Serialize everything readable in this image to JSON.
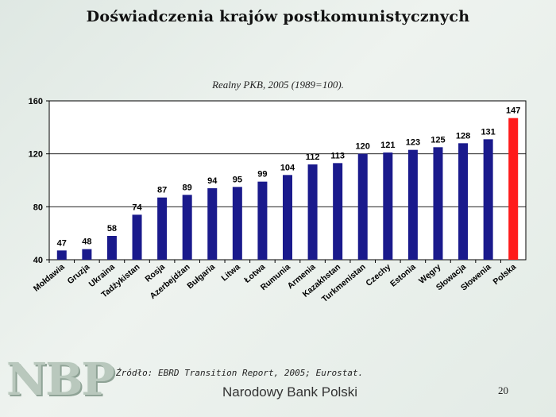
{
  "slide": {
    "title": "Doświadczenia krajów postkomunistycznych",
    "source": "Źródło: EBRD Transition Report, 2005; Eurostat.",
    "logo_text": "NBP",
    "logo_name": "Narodowy Bank Polski",
    "page_number": "20"
  },
  "colors": {
    "bar": "#1a1a8c",
    "highlight": "#ff1a1a"
  },
  "chart_data": {
    "type": "bar",
    "title": "Realny PKB, 2005 (1989=100).",
    "xlabel": "",
    "ylabel": "",
    "ylim": [
      40,
      160
    ],
    "yticks": [
      40,
      80,
      120,
      160
    ],
    "grid": true,
    "categories": [
      "Mołdawia",
      "Gruzja",
      "Ukraina",
      "Tadżykistan",
      "Rosja",
      "Azerbejdżan",
      "Bułgaria",
      "Litwa",
      "Łotwa",
      "Rumunia",
      "Armenia",
      "Kazakhstan",
      "Turkmenistan",
      "Czechy",
      "Estonia",
      "Węgry",
      "Słowacja",
      "Słowenia",
      "Polska"
    ],
    "values": [
      47,
      48,
      58,
      74,
      87,
      89,
      94,
      95,
      99,
      104,
      112,
      113,
      120,
      121,
      123,
      125,
      128,
      131,
      147
    ],
    "highlight": "Polska"
  }
}
